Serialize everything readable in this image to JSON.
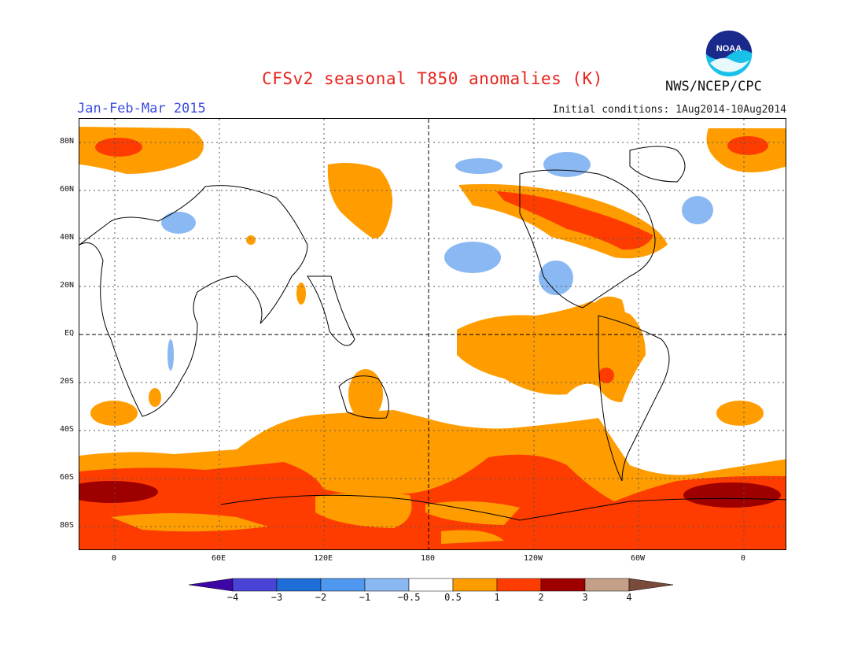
{
  "header": {
    "title": "CFSv2 seasonal T850 anomalies (K)",
    "agency": "NWS/NCEP/CPC",
    "season": "Jan-Feb-Mar 2015",
    "initial_conditions": "Initial conditions: 1Aug2014-10Aug2014",
    "logo_text": "NOAA"
  },
  "map": {
    "projection": "cylindrical equidistant",
    "lon_labels": [
      "0",
      "60E",
      "120E",
      "180",
      "120W",
      "60W",
      "0"
    ],
    "lat_labels": [
      "80N",
      "60N",
      "40N",
      "20N",
      "EQ",
      "20S",
      "40S",
      "60S",
      "80S"
    ],
    "anomaly_colors": {
      "neg4": "#3d06a6",
      "neg3": "#4a44d6",
      "neg2": "#1f6dd6",
      "neg1": "#4f98f0",
      "neg05": "#8ab8f2",
      "zero": "#ffffff",
      "pos05": "#ff9d00",
      "pos1": "#ff3c00",
      "pos2": "#9e0000",
      "pos3": "#c4a088",
      "pos4": "#7a4a3a"
    }
  },
  "colorbar": {
    "labels": [
      "−4",
      "−3",
      "−2",
      "−1",
      "−0.5",
      "0.5",
      "1",
      "2",
      "3",
      "4"
    ],
    "bins": [
      {
        "color": "#3d06a6"
      },
      {
        "color": "#4a44d6"
      },
      {
        "color": "#1f6dd6"
      },
      {
        "color": "#4f98f0"
      },
      {
        "color": "#8ab8f2"
      },
      {
        "color": "#ffffff"
      },
      {
        "color": "#ff9d00"
      },
      {
        "color": "#ff3c00"
      },
      {
        "color": "#9e0000"
      },
      {
        "color": "#c4a088"
      },
      {
        "color": "#7a4a3a"
      }
    ]
  }
}
